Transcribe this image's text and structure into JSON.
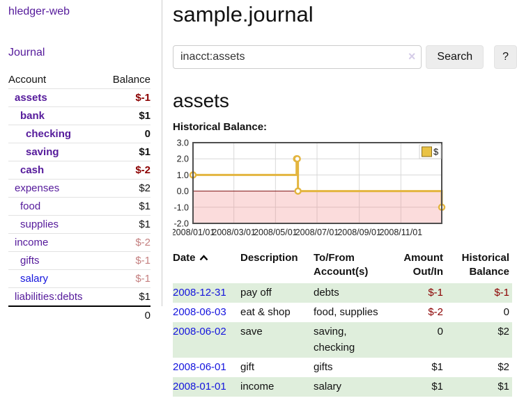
{
  "app": {
    "title": "hledger-web",
    "nav_journal": "Journal"
  },
  "sidebar": {
    "accounts_header": {
      "account": "Account",
      "balance": "Balance"
    },
    "accounts": [
      {
        "name": "assets",
        "depth": 1,
        "bold": true,
        "balance": "$-1",
        "balance_style": "neg-strong",
        "link_color": "purple"
      },
      {
        "name": "bank",
        "depth": 2,
        "bold": true,
        "balance": "$1",
        "balance_style": "pos",
        "link_color": "purple"
      },
      {
        "name": "checking",
        "depth": 3,
        "bold": true,
        "balance": "0",
        "balance_style": "pos",
        "link_color": "purple"
      },
      {
        "name": "saving",
        "depth": 3,
        "bold": true,
        "balance": "$1",
        "balance_style": "pos",
        "link_color": "purple"
      },
      {
        "name": "cash",
        "depth": 2,
        "bold": true,
        "balance": "$-2",
        "balance_style": "neg-strong",
        "link_color": "purple"
      },
      {
        "name": "expenses",
        "depth": 1,
        "bold": false,
        "balance": "$2",
        "balance_style": "pos",
        "link_color": "purple"
      },
      {
        "name": "food",
        "depth": 2,
        "bold": false,
        "balance": "$1",
        "balance_style": "pos",
        "link_color": "purple"
      },
      {
        "name": "supplies",
        "depth": 2,
        "bold": false,
        "balance": "$1",
        "balance_style": "pos",
        "link_color": "purple"
      },
      {
        "name": "income",
        "depth": 1,
        "bold": false,
        "balance": "$-2",
        "balance_style": "neg-muted",
        "link_color": "purple"
      },
      {
        "name": "gifts",
        "depth": 2,
        "bold": false,
        "balance": "$-1",
        "balance_style": "neg-muted",
        "link_color": "purple"
      },
      {
        "name": "salary",
        "depth": 2,
        "bold": false,
        "balance": "$-1",
        "balance_style": "neg-muted",
        "link_color": "blue"
      },
      {
        "name": "liabilities:debts",
        "depth": 1,
        "bold": false,
        "balance": "$1",
        "balance_style": "pos",
        "link_color": "purple"
      }
    ],
    "total": "0"
  },
  "header": {
    "title": "sample.journal"
  },
  "search": {
    "value": "inacct:assets",
    "clear_icon": "×",
    "button": "Search",
    "help_button": "?"
  },
  "account_page": {
    "title": "assets",
    "chart_label": "Historical Balance:"
  },
  "chart_data": {
    "type": "line",
    "step": true,
    "title": "Historical Balance",
    "series": [
      {
        "name": "$",
        "color": "#e3b53f",
        "points": [
          [
            "2008-01-01",
            1
          ],
          [
            "2008-06-01",
            2
          ],
          [
            "2008-06-02",
            2
          ],
          [
            "2008-06-03",
            0
          ],
          [
            "2008-12-31",
            -1
          ]
        ]
      }
    ],
    "x_range": [
      "2008-01-01",
      "2008-12-31"
    ],
    "x_ticks": [
      "2008/01/01",
      "2008/03/01",
      "2008/05/01",
      "2008/07/01",
      "2008/09/01",
      "2008/11/01"
    ],
    "y_ticks": [
      "3.0",
      "2.0",
      "1.0",
      "0.0",
      "-1.0",
      "-2.0"
    ],
    "ylim": [
      -2,
      3
    ],
    "grid": true,
    "legend": {
      "label": "$",
      "position": "top-right"
    },
    "negative_region_color": "rgba(240,130,130,0.28)",
    "zero_line_color": "#7d0e0e"
  },
  "register": {
    "columns": [
      "Date",
      "Description",
      "To/From Account(s)",
      "Amount Out/In",
      "Historical Balance"
    ],
    "sort": {
      "column": "Date",
      "direction": "ascending"
    },
    "rows": [
      {
        "date": "2008-12-31",
        "description": "pay off",
        "accounts": "debts",
        "amount": "$-1",
        "amount_neg": true,
        "balance": "$-1",
        "balance_neg": true,
        "stripe": true
      },
      {
        "date": "2008-06-03",
        "description": "eat & shop",
        "accounts": "food, supplies",
        "amount": "$-2",
        "amount_neg": true,
        "balance": "0",
        "balance_neg": false,
        "stripe": false
      },
      {
        "date": "2008-06-02",
        "description": "save",
        "accounts": "saving, checking",
        "amount": "0",
        "amount_neg": false,
        "balance": "$2",
        "balance_neg": false,
        "stripe": true
      },
      {
        "date": "2008-06-01",
        "description": "gift",
        "accounts": "gifts",
        "amount": "$1",
        "amount_neg": false,
        "balance": "$2",
        "balance_neg": false,
        "stripe": false
      },
      {
        "date": "2008-01-01",
        "description": "income",
        "accounts": "salary",
        "amount": "$1",
        "amount_neg": false,
        "balance": "$1",
        "balance_neg": false,
        "stripe": true
      }
    ]
  },
  "colors": {
    "link_purple": "#551a9b",
    "link_blue": "#1414dd",
    "negative_strong": "#8b0000",
    "negative_muted": "#c47f7f",
    "row_stripe_green": "#dfeedc",
    "chart_line_gold": "#e3b53f",
    "chart_negative_fill": "#f8dada",
    "chart_zero_line": "#7d0e0e"
  }
}
